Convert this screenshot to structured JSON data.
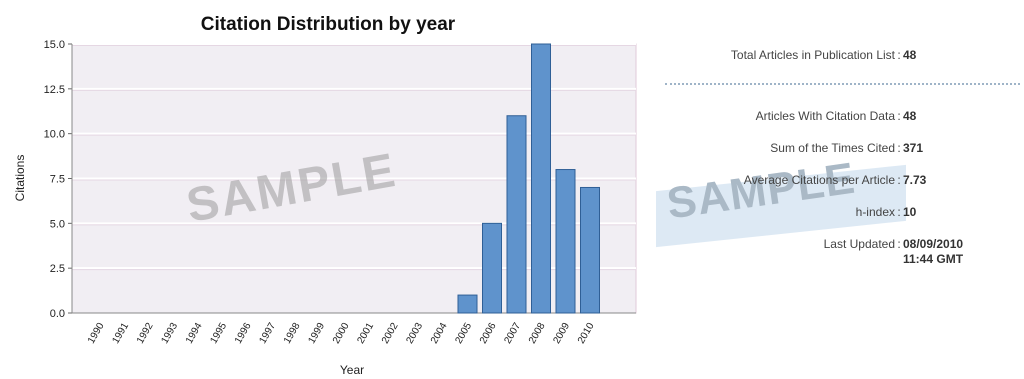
{
  "chart_data": {
    "type": "bar",
    "title": "Citation Distribution by year",
    "xlabel": "Year",
    "ylabel": "Citations",
    "categories": [
      "1990",
      "1991",
      "1992",
      "1993",
      "1994",
      "1995",
      "1996",
      "1997",
      "1998",
      "1999",
      "2000",
      "2001",
      "2002",
      "2003",
      "2004",
      "2005",
      "2006",
      "2007",
      "2008",
      "2009",
      "2010"
    ],
    "values": [
      0,
      0,
      0,
      0,
      0,
      0,
      0,
      0,
      0,
      0,
      0,
      0,
      0,
      0,
      0,
      1,
      5,
      11,
      15,
      8,
      7
    ],
    "ylim": [
      0,
      15
    ],
    "yticks": [
      "0.0",
      "2.5",
      "5.0",
      "7.5",
      "10.0",
      "12.5",
      "15.0"
    ],
    "grid": true,
    "bar_color": "#5f93cc",
    "plot_background": "#f1eef3",
    "watermark": "SAMPLE"
  },
  "stats": {
    "separator": ":",
    "rows": [
      {
        "label": "Total Articles in Publication List",
        "value": "48"
      },
      {
        "label": "Articles With Citation Data",
        "value": "48"
      },
      {
        "label": "Sum of the Times Cited",
        "value": "371"
      },
      {
        "label": "Average Citations per Article",
        "value": "7.73"
      },
      {
        "label": "h-index",
        "value": "10"
      },
      {
        "label": "Last Updated",
        "value": "08/09/2010",
        "value2": "11:44 GMT"
      }
    ],
    "watermark": "SAMPLE"
  }
}
